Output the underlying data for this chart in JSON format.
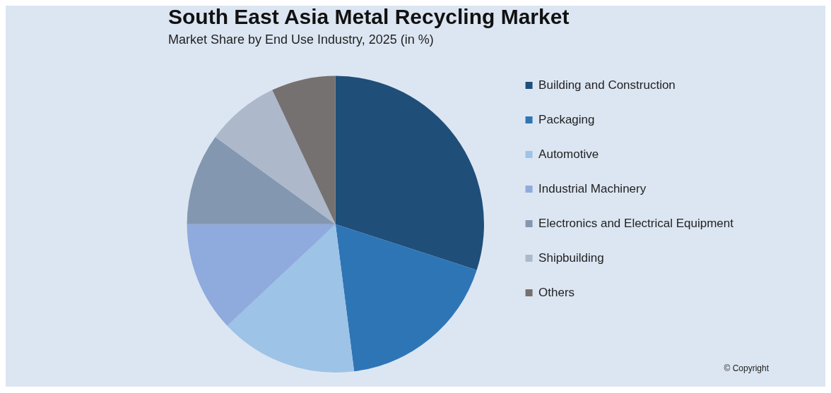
{
  "chart_data": {
    "type": "pie",
    "title": "South East Asia Metal Recycling Market",
    "subtitle": "Market Share by End Use Industry, 2025 (in %)",
    "categories": [
      "Building and Construction",
      "Packaging",
      "Automotive",
      "Industrial Machinery",
      "Electronics and Electrical Equipment",
      "Shipbuilding",
      "Others"
    ],
    "values": [
      30,
      18,
      15,
      12,
      10,
      8,
      7
    ],
    "colors": [
      "#1f4e79",
      "#2e75b6",
      "#9dc3e6",
      "#8faadc",
      "#8497b0",
      "#adb9ca",
      "#767171"
    ],
    "legend": "right",
    "annotations": [
      "© Copyright"
    ]
  }
}
